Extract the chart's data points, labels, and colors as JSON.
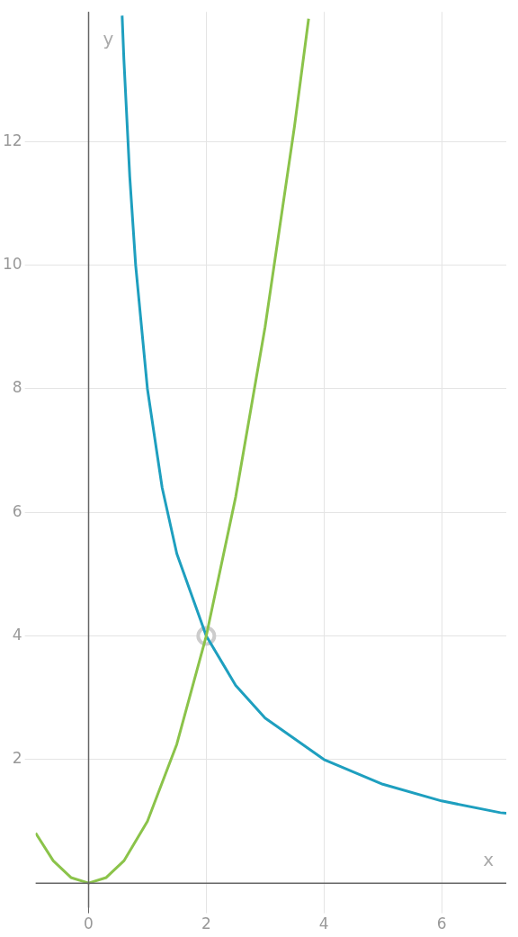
{
  "chart_data": {
    "type": "line",
    "xlabel": "x",
    "ylabel": "y",
    "xlim": [
      -0.9,
      7.1
    ],
    "ylim": [
      -0.4,
      14.1
    ],
    "xticks": [
      0,
      2,
      4,
      6
    ],
    "yticks": [
      2,
      4,
      6,
      8,
      10,
      12
    ],
    "grid": true,
    "legend": false,
    "marker": "none",
    "series": [
      {
        "color": "#8bc34a",
        "x": [
          -0.9,
          -0.6,
          -0.3,
          0,
          0.3,
          0.6,
          1,
          1.5,
          2,
          2.5,
          3,
          3.5,
          3.74
        ],
        "values": [
          0.81,
          0.36,
          0.09,
          0,
          0.09,
          0.36,
          1,
          2.25,
          4,
          6.25,
          9,
          12.25,
          13.99
        ]
      },
      {
        "color": "#1e9fbf",
        "x": [
          0.57,
          0.6,
          0.7,
          0.8,
          1,
          1.25,
          1.5,
          2,
          2.5,
          3,
          4,
          5,
          6,
          7,
          7.1
        ],
        "values": [
          14.04,
          13.33,
          11.43,
          10,
          8,
          6.4,
          5.33,
          4,
          3.2,
          2.67,
          2,
          1.6,
          1.33,
          1.14,
          1.13
        ]
      },
      {
        "type": "scatter",
        "marker": "circle",
        "color": "#cccccc",
        "x": [
          2
        ],
        "values": [
          4
        ]
      }
    ]
  }
}
